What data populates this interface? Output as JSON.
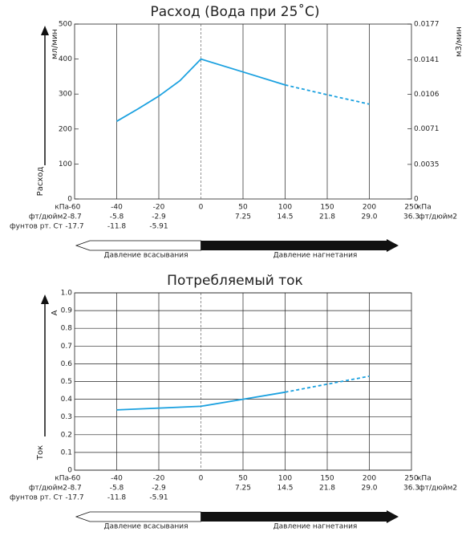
{
  "chart_data": [
    {
      "type": "line",
      "title": "Расход (Вода при 25˚C)",
      "y_label": "мл/мин",
      "y_title": "Расход",
      "y2_label": "м3/мин",
      "x_unit": "кПа",
      "xticks": [
        -60,
        -40,
        -20,
        0,
        50,
        100,
        150,
        200,
        250
      ],
      "xlim": [
        -60,
        250
      ],
      "psi_label": "фт/дюйм2",
      "psi_labels": [
        "-8.7",
        "-5.8",
        "-2.9",
        null,
        "7.25",
        "14.5",
        "21.8",
        "29.0",
        "36.3"
      ],
      "inhg_label": "фунтов рт. Ст",
      "inhg_labels": [
        "-17.7",
        "-11.8",
        "-5.91",
        null,
        null,
        null,
        null,
        null,
        null
      ],
      "ylim": [
        0,
        500
      ],
      "yticks": [
        0,
        100,
        200,
        300,
        400,
        500
      ],
      "y2lim": [
        0,
        0.0177
      ],
      "y2ticks": [
        0,
        0.0035,
        0.0071,
        0.0106,
        0.0141,
        0.0177
      ],
      "grid": "x",
      "suction_label": "Давление всасывания",
      "discharge_label": "Давление нагнетания",
      "series": [
        {
          "color": "#1ba1e0",
          "dash": false,
          "x": [
            -40,
            -30,
            -20,
            -10,
            0,
            50,
            100
          ],
          "values": [
            222,
            257,
            294,
            338,
            400,
            363,
            326
          ]
        },
        {
          "color": "#1ba1e0",
          "dash": true,
          "x": [
            100,
            150,
            200
          ],
          "values": [
            326,
            298,
            271
          ]
        }
      ]
    },
    {
      "type": "line",
      "title": "Потребляемый ток",
      "y_label": "A",
      "y_title": "Ток",
      "x_unit": "кПа",
      "xticks": [
        -60,
        -40,
        -20,
        0,
        50,
        100,
        150,
        200,
        250
      ],
      "xlim": [
        -60,
        250
      ],
      "psi_label": "фт/дюйм2",
      "psi_labels": [
        "-8.7",
        "-5.8",
        "-2.9",
        null,
        "7.25",
        "14.5",
        "21.8",
        "29.0",
        "36.3"
      ],
      "inhg_label": "фунтов рт. Ст",
      "inhg_labels": [
        "-17.7",
        "-11.8",
        "-5.91",
        null,
        null,
        null,
        null,
        null,
        null
      ],
      "ylim": [
        0,
        1
      ],
      "yticks": [
        0,
        0.1,
        0.2,
        0.3,
        0.4,
        0.5,
        0.6,
        0.7,
        0.8,
        0.9,
        {
          "value": 1,
          "label": "1.0"
        }
      ],
      "grid": "both",
      "suction_label": "Давление всасывания",
      "discharge_label": "Давление нагнетания",
      "series": [
        {
          "color": "#1ba1e0",
          "dash": false,
          "x": [
            -40,
            0,
            50,
            100
          ],
          "values": [
            0.34,
            0.36,
            0.4,
            0.44
          ]
        },
        {
          "color": "#1ba1e0",
          "dash": true,
          "x": [
            100,
            150,
            200
          ],
          "values": [
            0.44,
            0.485,
            0.53
          ]
        }
      ]
    }
  ]
}
